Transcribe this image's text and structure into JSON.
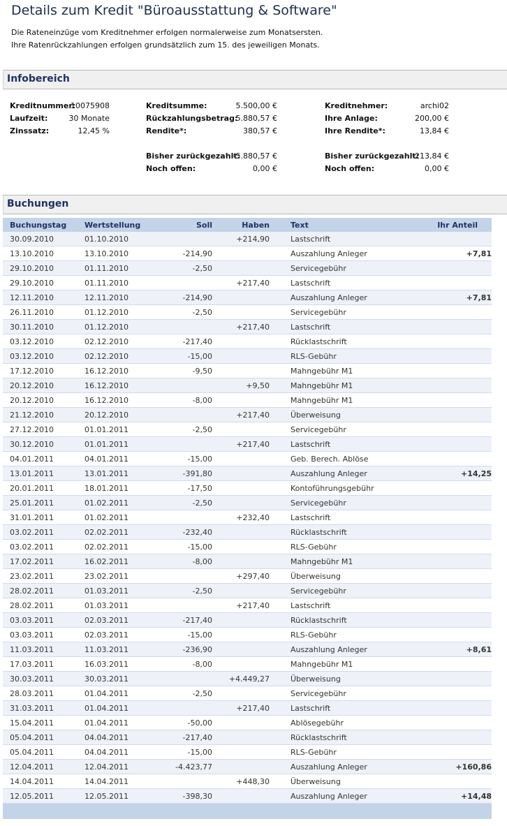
{
  "page": {
    "title": "Details zum Kredit \"Büroausstattung & Software\"",
    "intro_lines": [
      "Die Rateneinzüge vom Kreditnehmer erfolgen normalerweise zum Monatsersten.",
      "Ihre Ratenrückzahlungen erfolgen grundsätzlich zum 15. des jeweiligen Monats."
    ]
  },
  "info": {
    "heading": "Infobereich",
    "fields": {
      "kreditnummer": {
        "label": "Kreditnummer:",
        "value": "10075908"
      },
      "laufzeit": {
        "label": "Laufzeit:",
        "value": "30 Monate"
      },
      "zinssatz": {
        "label": "Zinssatz:",
        "value": "12,45 %"
      },
      "kreditsumme": {
        "label": "Kreditsumme:",
        "value": "5.500,00 €"
      },
      "rueckzahlungsbetrag": {
        "label": "Rückzahlungsbetrag:",
        "value": "5.880,57 €"
      },
      "rendite": {
        "label": "Rendite*:",
        "value": "380,57 €"
      },
      "bisher_zurueck": {
        "label": "Bisher zurückgezahlt:",
        "value": "-5.880,57 €"
      },
      "noch_offen": {
        "label": "Noch offen:",
        "value": "0,00 €"
      },
      "kreditnehmer": {
        "label": "Kreditnehmer:",
        "value": "archi02"
      },
      "ihre_anlage": {
        "label": "Ihre Anlage:",
        "value": "200,00 €"
      },
      "ihre_rendite": {
        "label": "Ihre Rendite*:",
        "value": "13,84 €"
      },
      "bisher_zurueck_2": {
        "label": "Bisher zurückgezahlt:",
        "value": "-213,84 €"
      },
      "noch_offen_2": {
        "label": "Noch offen:",
        "value": "0,00 €"
      }
    }
  },
  "bookings": {
    "heading": "Buchungen",
    "columns": {
      "buchungstag": "Buchungstag",
      "wertstellung": "Wertstellung",
      "soll": "Soll",
      "haben": "Haben",
      "text": "Text",
      "anteil": "Ihr Anteil"
    },
    "rows": [
      {
        "buchungstag": "30.09.2010",
        "wertstellung": "01.10.2010",
        "soll": "",
        "haben": "+214,90",
        "text": "Lastschrift",
        "anteil": ""
      },
      {
        "buchungstag": "13.10.2010",
        "wertstellung": "13.10.2010",
        "soll": "-214,90",
        "haben": "",
        "text": "Auszahlung Anleger",
        "anteil": "+7,81"
      },
      {
        "buchungstag": "29.10.2010",
        "wertstellung": "01.11.2010",
        "soll": "-2,50",
        "haben": "",
        "text": "Servicegebühr",
        "anteil": ""
      },
      {
        "buchungstag": "29.10.2010",
        "wertstellung": "01.11.2010",
        "soll": "",
        "haben": "+217,40",
        "text": "Lastschrift",
        "anteil": ""
      },
      {
        "buchungstag": "12.11.2010",
        "wertstellung": "12.11.2010",
        "soll": "-214,90",
        "haben": "",
        "text": "Auszahlung Anleger",
        "anteil": "+7,81"
      },
      {
        "buchungstag": "26.11.2010",
        "wertstellung": "01.12.2010",
        "soll": "-2,50",
        "haben": "",
        "text": "Servicegebühr",
        "anteil": ""
      },
      {
        "buchungstag": "30.11.2010",
        "wertstellung": "01.12.2010",
        "soll": "",
        "haben": "+217,40",
        "text": "Lastschrift",
        "anteil": ""
      },
      {
        "buchungstag": "03.12.2010",
        "wertstellung": "02.12.2010",
        "soll": "-217,40",
        "haben": "",
        "text": "Rücklastschrift",
        "anteil": ""
      },
      {
        "buchungstag": "03.12.2010",
        "wertstellung": "02.12.2010",
        "soll": "-15,00",
        "haben": "",
        "text": "RLS-Gebühr",
        "anteil": ""
      },
      {
        "buchungstag": "17.12.2010",
        "wertstellung": "16.12.2010",
        "soll": "-9,50",
        "haben": "",
        "text": "Mahngebühr M1",
        "anteil": ""
      },
      {
        "buchungstag": "20.12.2010",
        "wertstellung": "16.12.2010",
        "soll": "",
        "haben": "+9,50",
        "text": "Mahngebühr M1",
        "anteil": ""
      },
      {
        "buchungstag": "20.12.2010",
        "wertstellung": "16.12.2010",
        "soll": "-8,00",
        "haben": "",
        "text": "Mahngebühr M1",
        "anteil": ""
      },
      {
        "buchungstag": "21.12.2010",
        "wertstellung": "20.12.2010",
        "soll": "",
        "haben": "+217,40",
        "text": "Überweisung",
        "anteil": ""
      },
      {
        "buchungstag": "27.12.2010",
        "wertstellung": "01.01.2011",
        "soll": "-2,50",
        "haben": "",
        "text": "Servicegebühr",
        "anteil": ""
      },
      {
        "buchungstag": "30.12.2010",
        "wertstellung": "01.01.2011",
        "soll": "",
        "haben": "+217,40",
        "text": "Lastschrift",
        "anteil": ""
      },
      {
        "buchungstag": "04.01.2011",
        "wertstellung": "04.01.2011",
        "soll": "-15,00",
        "haben": "",
        "text": "Geb. Berech. Ablöse",
        "anteil": ""
      },
      {
        "buchungstag": "13.01.2011",
        "wertstellung": "13.01.2011",
        "soll": "-391,80",
        "haben": "",
        "text": "Auszahlung Anleger",
        "anteil": "+14,25"
      },
      {
        "buchungstag": "20.01.2011",
        "wertstellung": "18.01.2011",
        "soll": "-17,50",
        "haben": "",
        "text": "Kontoführungsgebühr",
        "anteil": ""
      },
      {
        "buchungstag": "25.01.2011",
        "wertstellung": "01.02.2011",
        "soll": "-2,50",
        "haben": "",
        "text": "Servicegebühr",
        "anteil": ""
      },
      {
        "buchungstag": "31.01.2011",
        "wertstellung": "01.02.2011",
        "soll": "",
        "haben": "+232,40",
        "text": "Lastschrift",
        "anteil": ""
      },
      {
        "buchungstag": "03.02.2011",
        "wertstellung": "02.02.2011",
        "soll": "-232,40",
        "haben": "",
        "text": "Rücklastschrift",
        "anteil": ""
      },
      {
        "buchungstag": "03.02.2011",
        "wertstellung": "02.02.2011",
        "soll": "-15,00",
        "haben": "",
        "text": "RLS-Gebühr",
        "anteil": ""
      },
      {
        "buchungstag": "17.02.2011",
        "wertstellung": "16.02.2011",
        "soll": "-8,00",
        "haben": "",
        "text": "Mahngebühr M1",
        "anteil": ""
      },
      {
        "buchungstag": "23.02.2011",
        "wertstellung": "23.02.2011",
        "soll": "",
        "haben": "+297,40",
        "text": "Überweisung",
        "anteil": ""
      },
      {
        "buchungstag": "28.02.2011",
        "wertstellung": "01.03.2011",
        "soll": "-2,50",
        "haben": "",
        "text": "Servicegebühr",
        "anteil": ""
      },
      {
        "buchungstag": "28.02.2011",
        "wertstellung": "01.03.2011",
        "soll": "",
        "haben": "+217,40",
        "text": "Lastschrift",
        "anteil": ""
      },
      {
        "buchungstag": "03.03.2011",
        "wertstellung": "02.03.2011",
        "soll": "-217,40",
        "haben": "",
        "text": "Rücklastschrift",
        "anteil": ""
      },
      {
        "buchungstag": "03.03.2011",
        "wertstellung": "02.03.2011",
        "soll": "-15,00",
        "haben": "",
        "text": "RLS-Gebühr",
        "anteil": ""
      },
      {
        "buchungstag": "11.03.2011",
        "wertstellung": "11.03.2011",
        "soll": "-236,90",
        "haben": "",
        "text": "Auszahlung Anleger",
        "anteil": "+8,61"
      },
      {
        "buchungstag": "17.03.2011",
        "wertstellung": "16.03.2011",
        "soll": "-8,00",
        "haben": "",
        "text": "Mahngebühr M1",
        "anteil": ""
      },
      {
        "buchungstag": "30.03.2011",
        "wertstellung": "30.03.2011",
        "soll": "",
        "haben": "+4.449,27",
        "text": "Überweisung",
        "anteil": ""
      },
      {
        "buchungstag": "28.03.2011",
        "wertstellung": "01.04.2011",
        "soll": "-2,50",
        "haben": "",
        "text": "Servicegebühr",
        "anteil": ""
      },
      {
        "buchungstag": "31.03.2011",
        "wertstellung": "01.04.2011",
        "soll": "",
        "haben": "+217,40",
        "text": "Lastschrift",
        "anteil": ""
      },
      {
        "buchungstag": "15.04.2011",
        "wertstellung": "01.04.2011",
        "soll": "-50,00",
        "haben": "",
        "text": "Ablösegebühr",
        "anteil": ""
      },
      {
        "buchungstag": "05.04.2011",
        "wertstellung": "04.04.2011",
        "soll": "-217,40",
        "haben": "",
        "text": "Rücklastschrift",
        "anteil": ""
      },
      {
        "buchungstag": "05.04.2011",
        "wertstellung": "04.04.2011",
        "soll": "-15,00",
        "haben": "",
        "text": "RLS-Gebühr",
        "anteil": ""
      },
      {
        "buchungstag": "12.04.2011",
        "wertstellung": "12.04.2011",
        "soll": "-4.423,77",
        "haben": "",
        "text": "Auszahlung Anleger",
        "anteil": "+160,86"
      },
      {
        "buchungstag": "14.04.2011",
        "wertstellung": "14.04.2011",
        "soll": "",
        "haben": "+448,30",
        "text": "Überweisung",
        "anteil": ""
      },
      {
        "buchungstag": "12.05.2011",
        "wertstellung": "12.05.2011",
        "soll": "-398,30",
        "haben": "",
        "text": "Auszahlung Anleger",
        "anteil": "+14,48"
      }
    ]
  },
  "colors": {
    "title": "#1e2e4a",
    "section_heading": "#1e3262",
    "table_header_bg": "#c3d4e8",
    "row_alt_bg": "#eef2f8",
    "negative": "#d40000",
    "positive": "#1a8a1a"
  }
}
